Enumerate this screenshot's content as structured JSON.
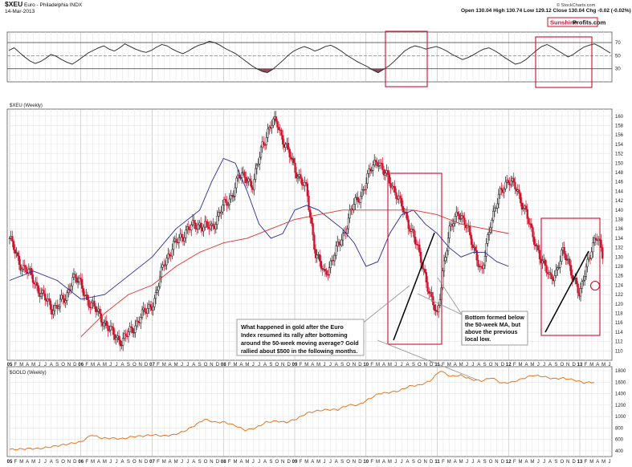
{
  "header": {
    "symbol": "$XEU",
    "name": "Euro - Philadelphia INDX",
    "date": "14-Mar-2013",
    "quote": "Open 130.04  High 130.74  Low 129.12  Close 130.04  Chg -0.02 (-0.02%)",
    "credit": "© StockCharts.com",
    "brand_sunshine": "Sunshine",
    "brand_profits": "Profits.com"
  },
  "colors": {
    "candle_up": "#1a1a1a",
    "candle_down": "#d0102a",
    "ma50": "#2a2a9a",
    "ma200": "#e0302a",
    "gold_line": "#e8741a",
    "rsi_line": "#222222",
    "annotation_box": "#c8102e",
    "rsi_overbought_fill": "#777777",
    "rsi_oversold_fill": "#8a4a5a"
  },
  "chart_data": [
    {
      "type": "line",
      "panel": "RSI",
      "y_ticks": [
        30,
        50,
        70
      ],
      "ylim": [
        10,
        86
      ],
      "series": [
        {
          "values": [
            58,
            62,
            55,
            48,
            42,
            38,
            41,
            46,
            52,
            49,
            44,
            40,
            37,
            42,
            48,
            54,
            58,
            62,
            65,
            60,
            57,
            62,
            68,
            64,
            60,
            57,
            55,
            58,
            63,
            67,
            65,
            60,
            56,
            53,
            57,
            62,
            66,
            68,
            72,
            70,
            66,
            61,
            57,
            53,
            47,
            41,
            35,
            30,
            26,
            24,
            29,
            36,
            43,
            51,
            57,
            61,
            64,
            61,
            57,
            60,
            64,
            66,
            62,
            57,
            51,
            46,
            41,
            37,
            33,
            28,
            24,
            29,
            34,
            41,
            49,
            57,
            62,
            65,
            63,
            60,
            62,
            64,
            61,
            57,
            52,
            48,
            44,
            47,
            51,
            56,
            60,
            62,
            58,
            53,
            47,
            42,
            37,
            39,
            44,
            51,
            58,
            64,
            67,
            63,
            58,
            53,
            48,
            52,
            58,
            63,
            66,
            68,
            64,
            59,
            54
          ]
        }
      ]
    },
    {
      "type": "candlestick",
      "panel": "$XEU (Weekly)",
      "title": "$XEU (Weekly)",
      "x_ticks": [
        "05",
        "F",
        "M",
        "A",
        "M",
        "J",
        "J",
        "A",
        "S",
        "O",
        "N",
        "D",
        "06",
        "F",
        "M",
        "A",
        "M",
        "J",
        "J",
        "A",
        "S",
        "O",
        "N",
        "D",
        "07",
        "F",
        "M",
        "A",
        "M",
        "J",
        "J",
        "A",
        "S",
        "O",
        "N",
        "D",
        "08",
        "F",
        "M",
        "A",
        "M",
        "J",
        "J",
        "A",
        "S",
        "O",
        "N",
        "D",
        "09",
        "F",
        "M",
        "A",
        "M",
        "J",
        "J",
        "A",
        "S",
        "O",
        "N",
        "D",
        "10",
        "F",
        "M",
        "A",
        "M",
        "J",
        "J",
        "A",
        "S",
        "O",
        "N",
        "D",
        "11",
        "F",
        "M",
        "A",
        "M",
        "J",
        "J",
        "A",
        "S",
        "O",
        "N",
        "D",
        "12",
        "F",
        "M",
        "A",
        "M",
        "J",
        "J",
        "A",
        "S",
        "O",
        "N",
        "D",
        "13",
        "F",
        "M",
        "A",
        "M",
        "J"
      ],
      "y_ticks": [
        110,
        112,
        114,
        116,
        118,
        120,
        122,
        124,
        126,
        128,
        130,
        132,
        134,
        136,
        138,
        140,
        142,
        144,
        146,
        148,
        150,
        152,
        154,
        156,
        158,
        160
      ],
      "ylim": [
        108,
        161.5
      ],
      "anchors_x": [
        0,
        1.5,
        3,
        5,
        7,
        9.5,
        10.5,
        12,
        13.5,
        15,
        17,
        19,
        22,
        24.5,
        26,
        28,
        30,
        32,
        34,
        35.5,
        37,
        38.5,
        40,
        41,
        42.5,
        44,
        45,
        46,
        48,
        50,
        51.5,
        53,
        54.5,
        56,
        57.5,
        59,
        61,
        62,
        63,
        65,
        66.5,
        68,
        69,
        70,
        71,
        72,
        73,
        74,
        75.5,
        77,
        78.5,
        79.5,
        81,
        82.5,
        84,
        85,
        86,
        87,
        88,
        89.5,
        91,
        92,
        93,
        94,
        95.5,
        96,
        97,
        98,
        99,
        100
      ],
      "anchors_close": [
        134,
        129,
        127,
        123,
        119,
        121,
        126,
        124,
        120,
        118,
        114,
        112,
        117,
        121,
        129,
        133,
        136,
        137,
        136,
        140,
        142,
        147,
        147,
        145,
        154,
        158,
        159,
        155,
        149,
        144,
        131,
        126,
        130,
        134,
        140,
        143,
        149,
        151,
        148,
        144,
        139,
        135,
        130,
        126,
        121,
        117,
        128,
        135,
        140,
        136,
        131,
        126,
        138,
        143,
        147,
        145,
        142,
        140,
        134,
        130,
        125,
        127,
        131,
        129,
        124,
        121,
        128,
        132,
        134,
        130
      ],
      "series": [
        {
          "name": "ma50",
          "points": [
            [
              0,
              125
            ],
            [
              4,
              127
            ],
            [
              8,
              125
            ],
            [
              12,
              121
            ],
            [
              16,
              122
            ],
            [
              20,
              126
            ],
            [
              24,
              130
            ],
            [
              28,
              136
            ],
            [
              32,
              140
            ],
            [
              34,
              146
            ],
            [
              36,
              151
            ],
            [
              38,
              150
            ],
            [
              40,
              144
            ],
            [
              42,
              137
            ],
            [
              44,
              134
            ],
            [
              46,
              135
            ],
            [
              48,
              140
            ],
            [
              50,
              141
            ],
            [
              52,
              140
            ],
            [
              54,
              138
            ],
            [
              56,
              136
            ],
            [
              58,
              133
            ],
            [
              60,
              128
            ],
            [
              62,
              129
            ],
            [
              64,
              135
            ],
            [
              66,
              139
            ],
            [
              68,
              140
            ],
            [
              70,
              137
            ],
            [
              72,
              135
            ],
            [
              74,
              132
            ],
            [
              76,
              130
            ],
            [
              78,
              131
            ],
            [
              80,
              131
            ],
            [
              82,
              129
            ],
            [
              84,
              128
            ]
          ]
        },
        {
          "name": "ma200",
          "points": [
            [
              12,
              113
            ],
            [
              16,
              118
            ],
            [
              20,
              122
            ],
            [
              24,
              124
            ],
            [
              28,
              128
            ],
            [
              32,
              131
            ],
            [
              36,
              133
            ],
            [
              40,
              134
            ],
            [
              44,
              136
            ],
            [
              48,
              138
            ],
            [
              52,
              139
            ],
            [
              56,
              140
            ],
            [
              60,
              140
            ],
            [
              64,
              140
            ],
            [
              68,
              140
            ],
            [
              72,
              139
            ],
            [
              76,
              137
            ],
            [
              80,
              136
            ],
            [
              84,
              135
            ]
          ]
        }
      ]
    },
    {
      "type": "line",
      "panel": "$GOLD (Weekly)",
      "title": "$GOLD (Weekly)",
      "y_ticks": [
        400,
        600,
        800,
        1000,
        1200,
        1400,
        1600,
        1800
      ],
      "ylim": [
        300,
        1870
      ],
      "series": [
        {
          "points": [
            [
              0,
              425
            ],
            [
              2,
              430
            ],
            [
              4,
              440
            ],
            [
              6,
              440
            ],
            [
              8,
              470
            ],
            [
              10,
              500
            ],
            [
              12,
              530
            ],
            [
              14,
              560
            ],
            [
              16,
              680
            ],
            [
              18,
              620
            ],
            [
              20,
              620
            ],
            [
              22,
              610
            ],
            [
              24,
              650
            ],
            [
              26,
              660
            ],
            [
              28,
              680
            ],
            [
              30,
              660
            ],
            [
              32,
              680
            ],
            [
              34,
              740
            ],
            [
              36,
              840
            ],
            [
              38,
              950
            ],
            [
              40,
              900
            ],
            [
              42,
              900
            ],
            [
              44,
              840
            ],
            [
              46,
              760
            ],
            [
              48,
              800
            ],
            [
              50,
              900
            ],
            [
              52,
              920
            ],
            [
              54,
              900
            ],
            [
              56,
              960
            ],
            [
              58,
              1060
            ],
            [
              60,
              1100
            ],
            [
              62,
              1120
            ],
            [
              64,
              1120
            ],
            [
              66,
              1200
            ],
            [
              68,
              1200
            ],
            [
              70,
              1300
            ],
            [
              72,
              1400
            ],
            [
              74,
              1420
            ],
            [
              76,
              1450
            ],
            [
              78,
              1530
            ],
            [
              80,
              1550
            ],
            [
              82,
              1620
            ],
            [
              84,
              1800
            ],
            [
              86,
              1700
            ],
            [
              88,
              1720
            ],
            [
              90,
              1650
            ],
            [
              92,
              1620
            ],
            [
              94,
              1680
            ],
            [
              96,
              1580
            ],
            [
              98,
              1600
            ],
            [
              100,
              1660
            ],
            [
              102,
              1720
            ],
            [
              104,
              1700
            ],
            [
              106,
              1660
            ],
            [
              108,
              1670
            ],
            [
              110,
              1640
            ],
            [
              112,
              1590
            ],
            [
              114,
              1600
            ]
          ]
        }
      ]
    }
  ],
  "annotations": {
    "main_note": [
      "What happened in gold after the Euro",
      "Index resumed its rally after bottoming",
      "around the 50-week moving average? Gold",
      "rallied about $500 in the following months."
    ],
    "bottom_note": [
      "Bottom formed below",
      "the 50-week MA, but",
      "above the previous",
      "local low."
    ]
  }
}
